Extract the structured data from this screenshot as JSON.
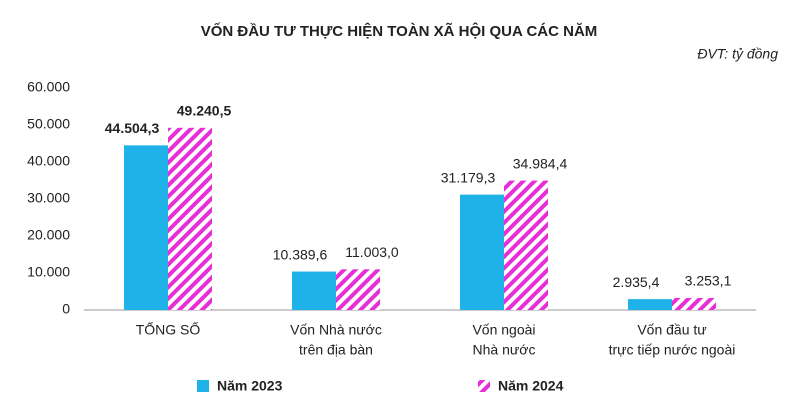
{
  "chart_data": {
    "type": "bar",
    "title": "VỐN ĐẦU TƯ THỰC HIỆN TOÀN XÃ HỘI QUA CÁC NĂM",
    "unit_note": "ĐVT: tỷ đồng",
    "categories": [
      [
        "TỔNG SỐ"
      ],
      [
        "Vốn Nhà nước",
        "trên địa bàn"
      ],
      [
        "Vốn ngoài",
        "Nhà nước"
      ],
      [
        "Vốn đầu tư",
        "trực tiếp nước ngoài"
      ]
    ],
    "series": [
      {
        "name": "Năm 2023",
        "color": "#1fb2e8",
        "pattern": "solid",
        "values": [
          44504.3,
          10389.6,
          31179.3,
          2935.4
        ],
        "value_labels": [
          "44.504,3",
          "10.389,6",
          "31.179,3",
          "2.935,4"
        ]
      },
      {
        "name": "Năm 2024",
        "color": "#e62fd6",
        "pattern": "hatch",
        "values": [
          49240.5,
          11003.0,
          34984.4,
          3253.1
        ],
        "value_labels": [
          "49.240,5",
          "11.003,0",
          "34.984,4",
          "3.253,1"
        ]
      }
    ],
    "ylim": [
      0,
      60000
    ],
    "yticks": [
      0,
      {
        "value": 10000,
        "label": "10.000"
      },
      {
        "value": 20000,
        "label": "20.000"
      },
      {
        "value": 30000,
        "label": "30.000"
      },
      {
        "value": 40000,
        "label": "40.000"
      },
      {
        "value": 50000,
        "label": "50.000"
      },
      {
        "value": 60000,
        "label": "60.000"
      }
    ],
    "grid": false
  }
}
